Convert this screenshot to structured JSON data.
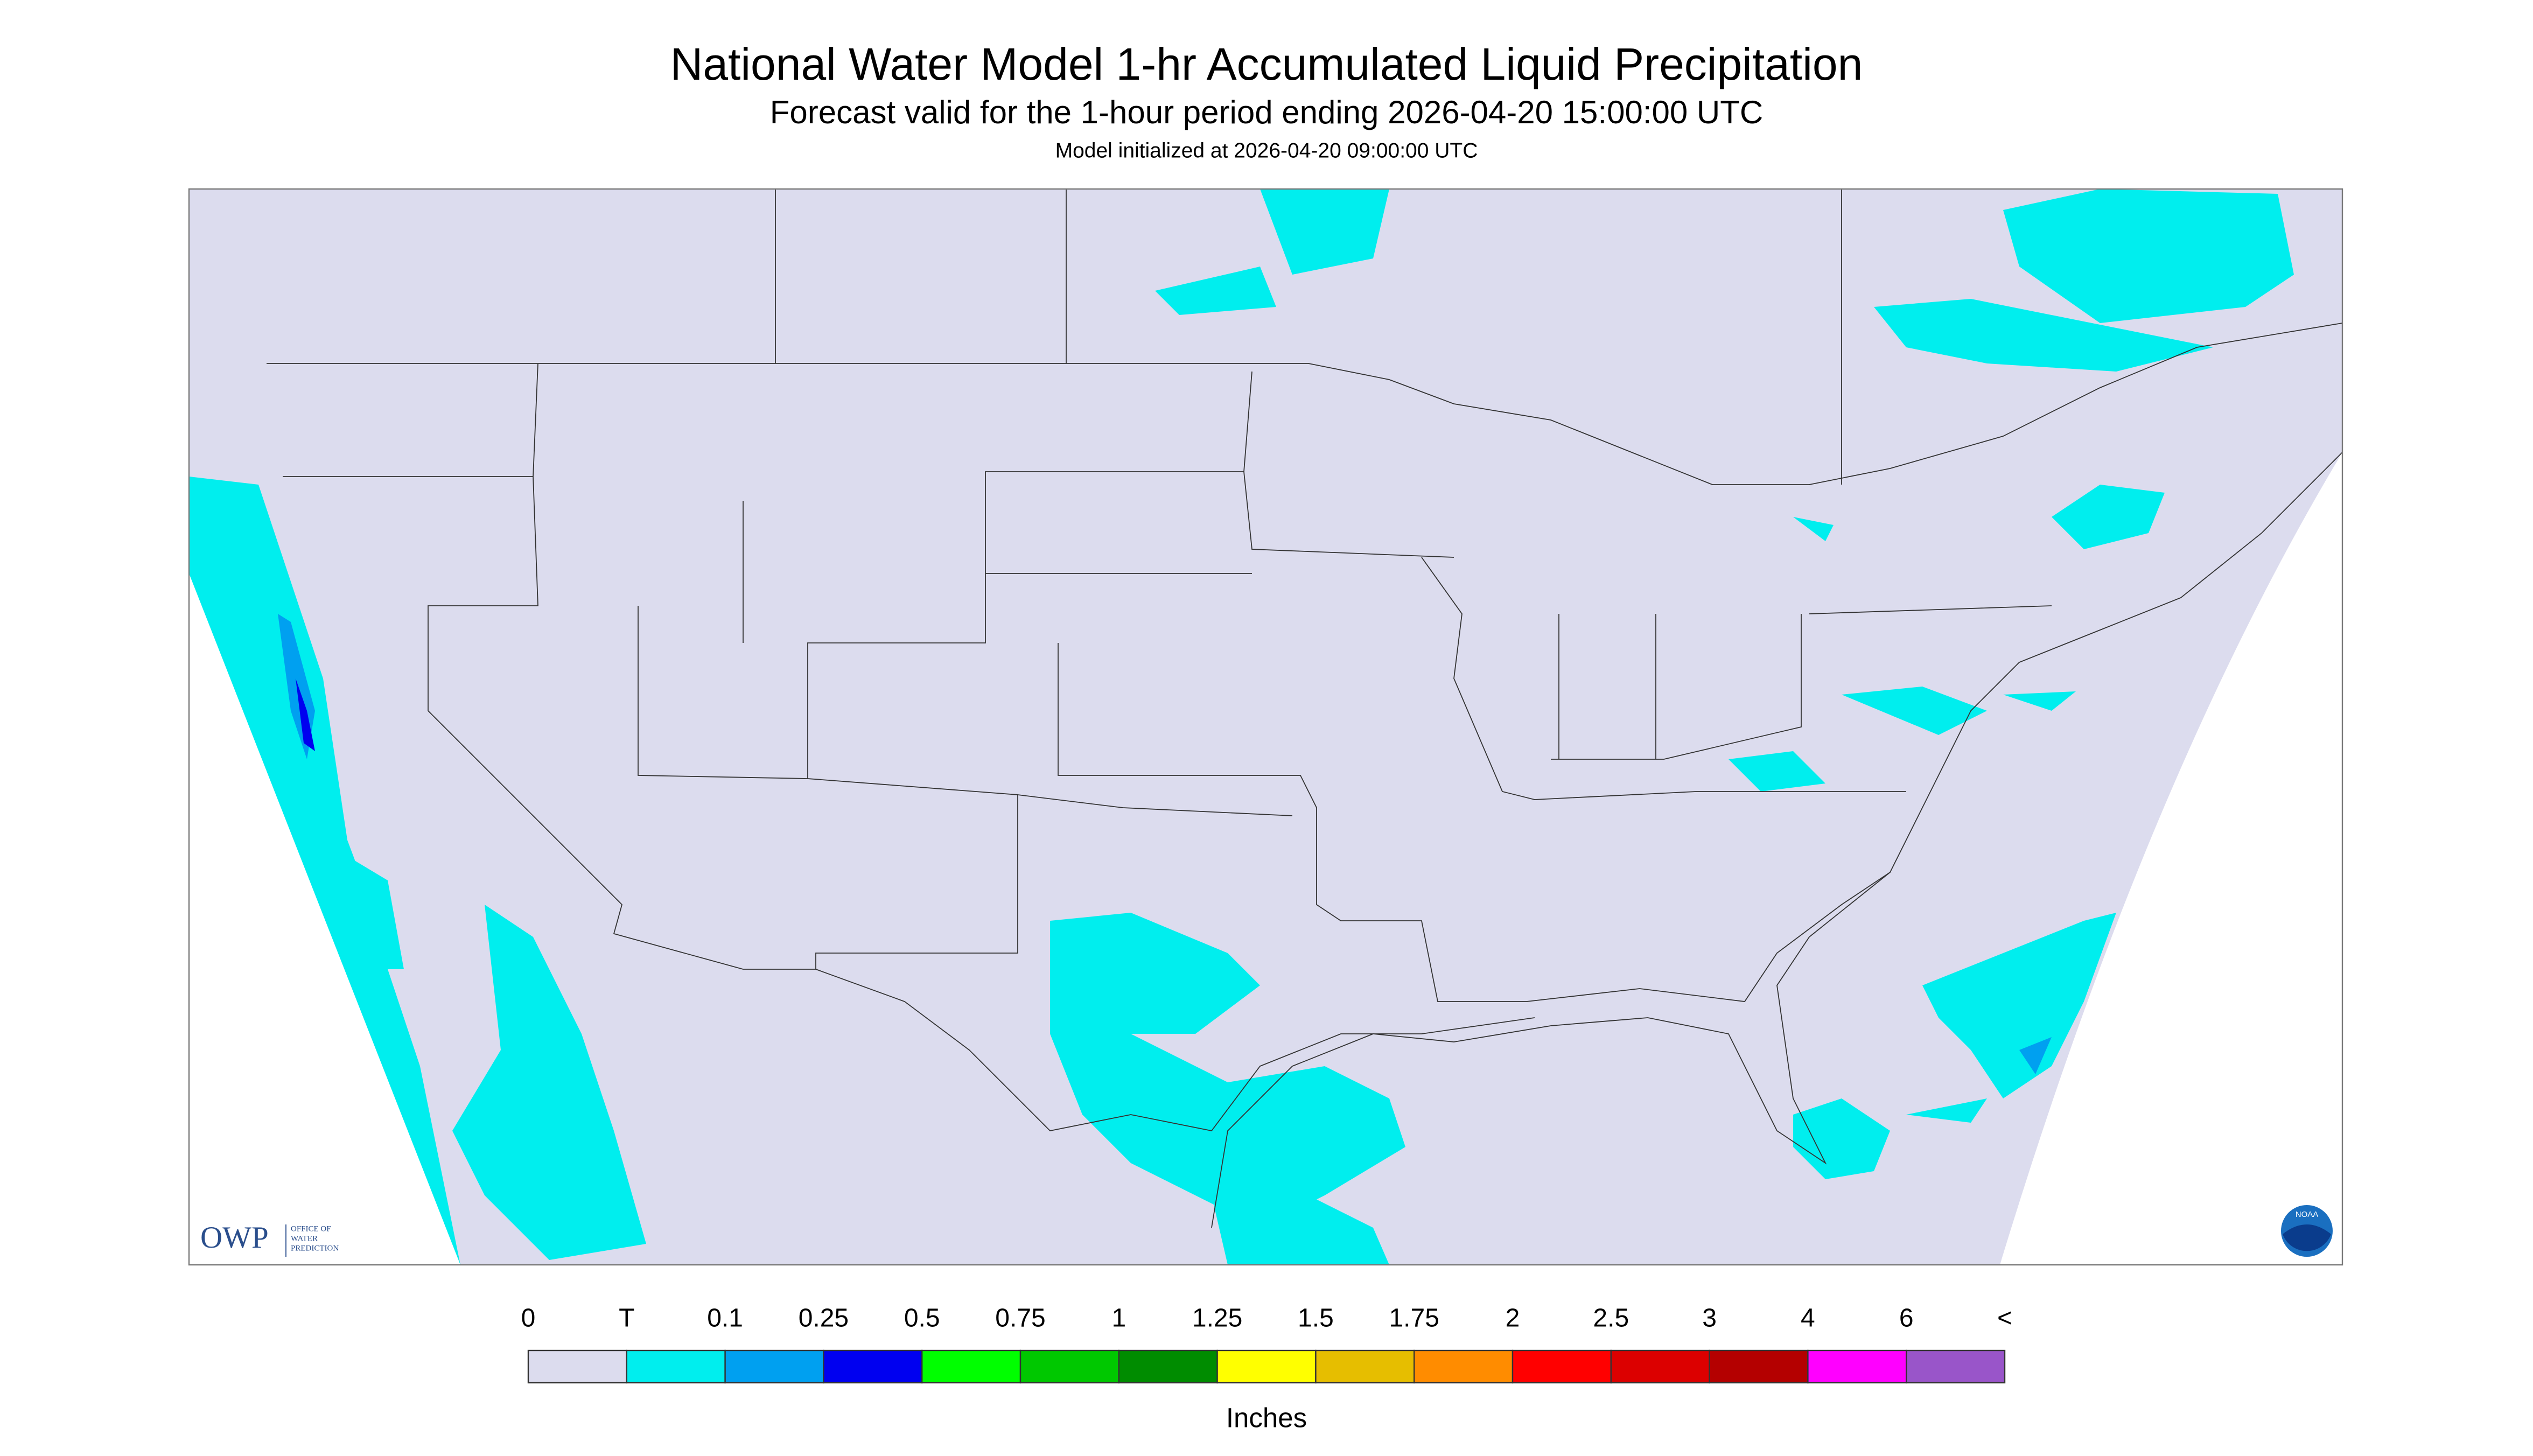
{
  "header": {
    "title": "National Water Model 1-hr Accumulated Liquid Precipitation",
    "subtitle": "Forecast valid for the 1-hour period ending 2026-04-20 15:00:00 UTC",
    "init": "Model initialized at 2026-04-20 09:00:00 UTC"
  },
  "legend": {
    "labels": [
      "0",
      "T",
      "0.1",
      "0.25",
      "0.5",
      "0.75",
      "1",
      "1.25",
      "1.5",
      "1.75",
      "2",
      "2.5",
      "3",
      "4",
      "6",
      "<"
    ],
    "colors": [
      "#dcdcee",
      "#00eeee",
      "#00a0f0",
      "#0000f0",
      "#00ff00",
      "#00c800",
      "#008c00",
      "#ffff00",
      "#e6be00",
      "#ff8c00",
      "#ff0000",
      "#dc0000",
      "#b40000",
      "#ff00ff",
      "#9955c9"
    ],
    "unit": "Inches"
  },
  "logo": {
    "owp": "OWP",
    "office": [
      "OFFICE OF",
      "WATER",
      "PREDICTION"
    ],
    "noaa": "NOAA"
  }
}
